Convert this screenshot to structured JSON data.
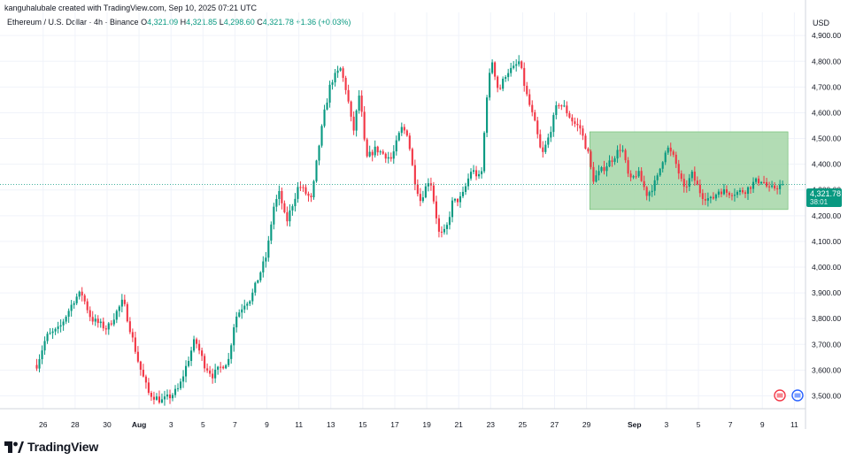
{
  "credit": "kanguhalubale created with TradingView.com, Sep 10, 2025 07:21 UTC",
  "legend": {
    "symbol": "Ethereum / U.S. Dollar · 4h · Binance",
    "o_label": "O",
    "o": "4,321.09",
    "h_label": "H",
    "h": "4,321.85",
    "l_label": "L",
    "l": "4,298.60",
    "c_label": "C",
    "c": "4,321.78",
    "change": "+1.36 (+0.03%)"
  },
  "currency": "USD",
  "last_price": {
    "price": "4,321.78",
    "countdown": "38:01"
  },
  "brand": "TradingView",
  "colors": {
    "up": "#089981",
    "down": "#f23645",
    "range_fill": "#a5d6a7",
    "range_stroke": "#66bb6a",
    "grid": "#f0f3fa"
  },
  "chart_data": {
    "type": "candlestick",
    "title": "Ethereum / U.S. Dollar · 4h · Binance",
    "ylim": [
      3450,
      4990
    ],
    "y_ticks": [
      3500,
      3600,
      3700,
      3800,
      3900,
      4000,
      4100,
      4200,
      4300,
      4400,
      4500,
      4600,
      4700,
      4800,
      4900
    ],
    "y_tick_labels": [
      "3,500.00",
      "3,600.00",
      "3,700.00",
      "3,800.00",
      "3,900.00",
      "4,000.00",
      "4,100.00",
      "4,200.00",
      "4,300.00",
      "4,400.00",
      "4,500.00",
      "4,600.00",
      "4,700.00",
      "4,800.00",
      "4,900.00"
    ],
    "x_ticks": [
      {
        "label": "26",
        "day": 26
      },
      {
        "label": "28",
        "day": 28
      },
      {
        "label": "30",
        "day": 30
      },
      {
        "label": "Aug",
        "day": 32
      },
      {
        "label": "3",
        "day": 34
      },
      {
        "label": "5",
        "day": 36
      },
      {
        "label": "7",
        "day": 38
      },
      {
        "label": "9",
        "day": 40
      },
      {
        "label": "11",
        "day": 42
      },
      {
        "label": "13",
        "day": 44
      },
      {
        "label": "15",
        "day": 46
      },
      {
        "label": "17",
        "day": 48
      },
      {
        "label": "19",
        "day": 50
      },
      {
        "label": "21",
        "day": 52
      },
      {
        "label": "23",
        "day": 54
      },
      {
        "label": "25",
        "day": 56
      },
      {
        "label": "27",
        "day": 58
      },
      {
        "label": "29",
        "day": 60
      },
      {
        "label": "Sep",
        "day": 63
      },
      {
        "label": "3",
        "day": 65
      },
      {
        "label": "5",
        "day": 67
      },
      {
        "label": "7",
        "day": 69
      },
      {
        "label": "9",
        "day": 71
      },
      {
        "label": "11",
        "day": 73
      }
    ],
    "anchors": [
      [
        25.6,
        3620
      ],
      [
        26.2,
        3730
      ],
      [
        27,
        3760
      ],
      [
        28,
        3880
      ],
      [
        28.4,
        3900
      ],
      [
        29,
        3800
      ],
      [
        30,
        3760
      ],
      [
        31,
        3870
      ],
      [
        31.4,
        3770
      ],
      [
        32,
        3620
      ],
      [
        32.6,
        3510
      ],
      [
        33.4,
        3480
      ],
      [
        34,
        3500
      ],
      [
        34.5,
        3530
      ],
      [
        35.5,
        3720
      ],
      [
        36.1,
        3620
      ],
      [
        36.6,
        3580
      ],
      [
        37.6,
        3640
      ],
      [
        38,
        3800
      ],
      [
        38.6,
        3860
      ],
      [
        39,
        3880
      ],
      [
        40,
        4050
      ],
      [
        40.4,
        4230
      ],
      [
        40.8,
        4290
      ],
      [
        41.2,
        4170
      ],
      [
        42,
        4320
      ],
      [
        42.8,
        4260
      ],
      [
        43.2,
        4450
      ],
      [
        43.6,
        4600
      ],
      [
        44,
        4720
      ],
      [
        44.6,
        4770
      ],
      [
        45,
        4680
      ],
      [
        45.4,
        4520
      ],
      [
        45.8,
        4680
      ],
      [
        46.2,
        4420
      ],
      [
        46.8,
        4460
      ],
      [
        47.8,
        4420
      ],
      [
        48.4,
        4540
      ],
      [
        48.8,
        4520
      ],
      [
        49.2,
        4350
      ],
      [
        49.6,
        4260
      ],
      [
        50.2,
        4350
      ],
      [
        50.8,
        4120
      ],
      [
        51.2,
        4140
      ],
      [
        51.6,
        4250
      ],
      [
        52.2,
        4270
      ],
      [
        52.8,
        4380
      ],
      [
        53.4,
        4340
      ],
      [
        53.8,
        4700
      ],
      [
        54.1,
        4800
      ],
      [
        54.5,
        4680
      ],
      [
        55,
        4760
      ],
      [
        55.4,
        4770
      ],
      [
        55.8,
        4800
      ],
      [
        56.2,
        4680
      ],
      [
        56.8,
        4550
      ],
      [
        57.2,
        4430
      ],
      [
        57.6,
        4500
      ],
      [
        58.2,
        4640
      ],
      [
        58.6,
        4620
      ],
      [
        59.2,
        4560
      ],
      [
        59.6,
        4540
      ],
      [
        60.1,
        4440
      ],
      [
        60.4,
        4340
      ],
      [
        61,
        4380
      ],
      [
        61.6,
        4420
      ],
      [
        62.2,
        4470
      ],
      [
        62.7,
        4330
      ],
      [
        63.2,
        4370
      ],
      [
        63.8,
        4280
      ],
      [
        64.4,
        4340
      ],
      [
        65,
        4470
      ],
      [
        65.5,
        4420
      ],
      [
        66.1,
        4300
      ],
      [
        66.6,
        4360
      ],
      [
        67.2,
        4280
      ],
      [
        67.8,
        4260
      ],
      [
        68.3,
        4300
      ],
      [
        68.8,
        4290
      ],
      [
        69.4,
        4290
      ],
      [
        70,
        4300
      ],
      [
        70.5,
        4330
      ],
      [
        71,
        4340
      ],
      [
        71.4,
        4300
      ],
      [
        71.8,
        4310
      ],
      [
        72.3,
        4322
      ]
    ],
    "range_box": {
      "day_start": 60.2,
      "day_end": 72.6,
      "price_low": 4224,
      "price_high": 4526,
      "label": ""
    },
    "last_close": 4321.78,
    "grid": true
  }
}
